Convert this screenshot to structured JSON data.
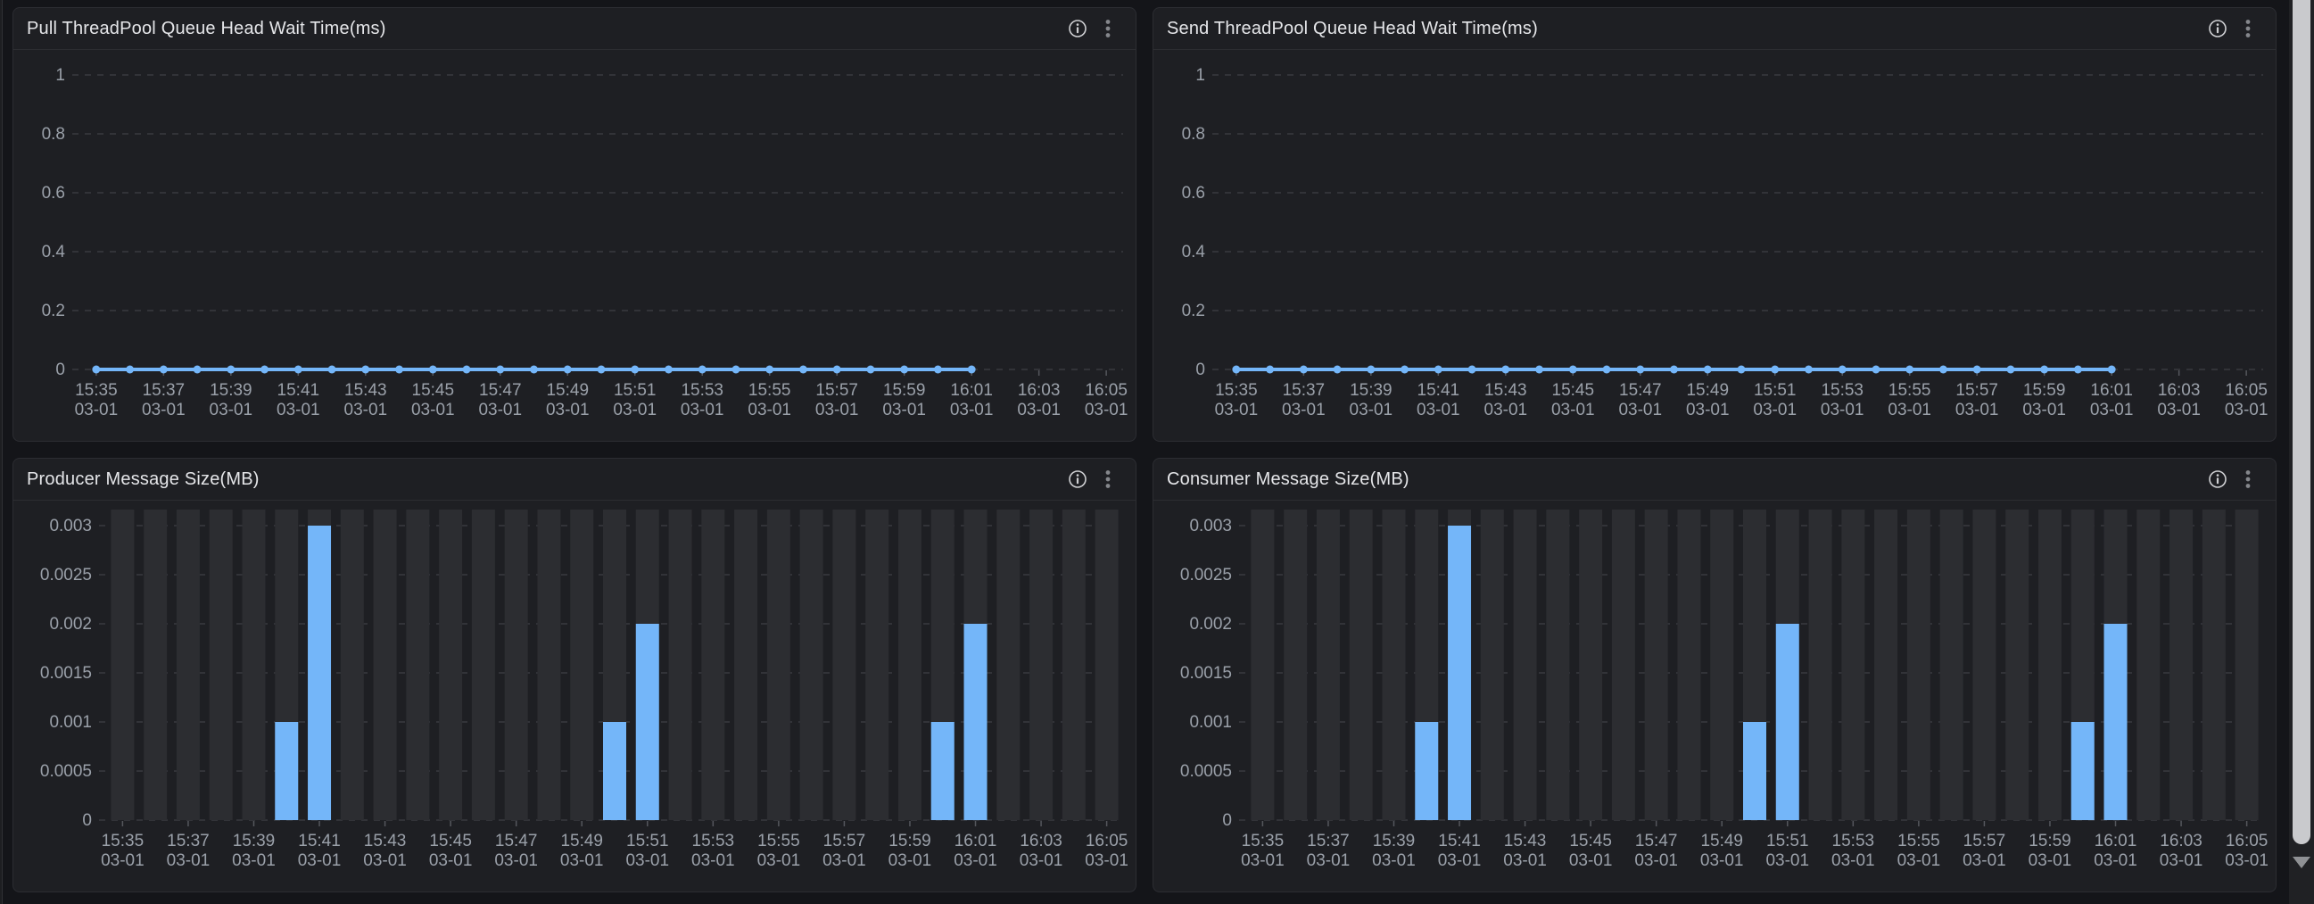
{
  "theme": {
    "page_bg": "#141519",
    "panel_bg": "#1e1f23",
    "panel_border": "#2c2d32",
    "title_color": "#e5e6e9",
    "axis_text_color": "#9aa0a9",
    "grid_color": "#45474d",
    "tick_color": "#55575d",
    "series_color": "#74b6f9",
    "bar_bg_column_color": "#2c2d31",
    "icon_color": "#cfd0d3",
    "kebab_color": "#85878c",
    "scrollbar_thumb_color": "#c9cacd"
  },
  "panels": [
    {
      "title": "Pull ThreadPool Queue Head Wait Time(ms)"
    },
    {
      "title": "Send ThreadPool Queue Head Wait Time(ms)"
    },
    {
      "title": "Producer Message Size(MB)"
    },
    {
      "title": "Consumer Message Size(MB)"
    }
  ],
  "chart_data": [
    {
      "type": "line",
      "title": "Pull ThreadPool Queue Head Wait Time(ms)",
      "xlabel": "",
      "ylabel": "",
      "ylim": [
        0,
        1
      ],
      "yticks": [
        0,
        0.2,
        0.4,
        0.6,
        0.8,
        1
      ],
      "grid": "dashed",
      "legend": false,
      "slots": 31,
      "label_every": 2,
      "x_tick_labels": [
        "15:35",
        "15:37",
        "15:39",
        "15:41",
        "15:43",
        "15:45",
        "15:47",
        "15:49",
        "15:51",
        "15:53",
        "15:55",
        "15:57",
        "15:59",
        "16:01",
        "16:03",
        "16:05"
      ],
      "x_date_label": "03-01",
      "points_start_slot": 0,
      "x_data_range": [
        "15:35 03-01",
        "16:01 03-01"
      ],
      "values": [
        0,
        0,
        0,
        0,
        0,
        0,
        0,
        0,
        0,
        0,
        0,
        0,
        0,
        0,
        0,
        0,
        0,
        0,
        0,
        0,
        0,
        0,
        0,
        0,
        0,
        0,
        0
      ]
    },
    {
      "type": "line",
      "title": "Send ThreadPool Queue Head Wait Time(ms)",
      "xlabel": "",
      "ylabel": "",
      "ylim": [
        0,
        1
      ],
      "yticks": [
        0,
        0.2,
        0.4,
        0.6,
        0.8,
        1
      ],
      "grid": "dashed",
      "legend": false,
      "slots": 31,
      "label_every": 2,
      "x_tick_labels": [
        "15:35",
        "15:37",
        "15:39",
        "15:41",
        "15:43",
        "15:45",
        "15:47",
        "15:49",
        "15:51",
        "15:53",
        "15:55",
        "15:57",
        "15:59",
        "16:01",
        "16:03",
        "16:05"
      ],
      "x_date_label": "03-01",
      "points_start_slot": 0,
      "x_data_range": [
        "15:35 03-01",
        "16:01 03-01"
      ],
      "values": [
        0,
        0,
        0,
        0,
        0,
        0,
        0,
        0,
        0,
        0,
        0,
        0,
        0,
        0,
        0,
        0,
        0,
        0,
        0,
        0,
        0,
        0,
        0,
        0,
        0,
        0,
        0
      ]
    },
    {
      "type": "bar",
      "title": "Producer Message Size(MB)",
      "xlabel": "",
      "ylabel": "",
      "ylim": [
        0,
        0.003
      ],
      "yticks": [
        0,
        0.0005,
        0.001,
        0.0015,
        0.002,
        0.0025,
        0.003
      ],
      "grid": "dashed",
      "legend": false,
      "slots": 31,
      "label_every": 2,
      "x_tick_labels": [
        "15:35",
        "15:37",
        "15:39",
        "15:41",
        "15:43",
        "15:45",
        "15:47",
        "15:49",
        "15:51",
        "15:53",
        "15:55",
        "15:57",
        "15:59",
        "16:01",
        "16:03",
        "16:05"
      ],
      "x_date_label": "03-01",
      "nonzero_points": [
        {
          "x": "15:40 03-01",
          "y": 0.001
        },
        {
          "x": "15:41 03-01",
          "y": 0.003
        },
        {
          "x": "15:50 03-01",
          "y": 0.001
        },
        {
          "x": "15:51 03-01",
          "y": 0.002
        },
        {
          "x": "16:00 03-01",
          "y": 0.001
        },
        {
          "x": "16:01 03-01",
          "y": 0.002
        }
      ],
      "values": [
        0,
        0,
        0,
        0,
        0,
        0.001,
        0.003,
        0,
        0,
        0,
        0,
        0,
        0,
        0,
        0,
        0.001,
        0.002,
        0,
        0,
        0,
        0,
        0,
        0,
        0,
        0,
        0.001,
        0.002,
        0,
        0,
        0,
        0
      ]
    },
    {
      "type": "bar",
      "title": "Consumer Message Size(MB)",
      "xlabel": "",
      "ylabel": "",
      "ylim": [
        0,
        0.003
      ],
      "yticks": [
        0,
        0.0005,
        0.001,
        0.0015,
        0.002,
        0.0025,
        0.003
      ],
      "grid": "dashed",
      "legend": false,
      "slots": 31,
      "label_every": 2,
      "x_tick_labels": [
        "15:35",
        "15:37",
        "15:39",
        "15:41",
        "15:43",
        "15:45",
        "15:47",
        "15:49",
        "15:51",
        "15:53",
        "15:55",
        "15:57",
        "15:59",
        "16:01",
        "16:03",
        "16:05"
      ],
      "x_date_label": "03-01",
      "nonzero_points": [
        {
          "x": "15:40 03-01",
          "y": 0.001
        },
        {
          "x": "15:41 03-01",
          "y": 0.003
        },
        {
          "x": "15:50 03-01",
          "y": 0.001
        },
        {
          "x": "15:51 03-01",
          "y": 0.002
        },
        {
          "x": "16:00 03-01",
          "y": 0.001
        },
        {
          "x": "16:01 03-01",
          "y": 0.002
        }
      ],
      "values": [
        0,
        0,
        0,
        0,
        0,
        0.001,
        0.003,
        0,
        0,
        0,
        0,
        0,
        0,
        0,
        0,
        0.001,
        0.002,
        0,
        0,
        0,
        0,
        0,
        0,
        0,
        0,
        0.001,
        0.002,
        0,
        0,
        0,
        0
      ]
    }
  ]
}
